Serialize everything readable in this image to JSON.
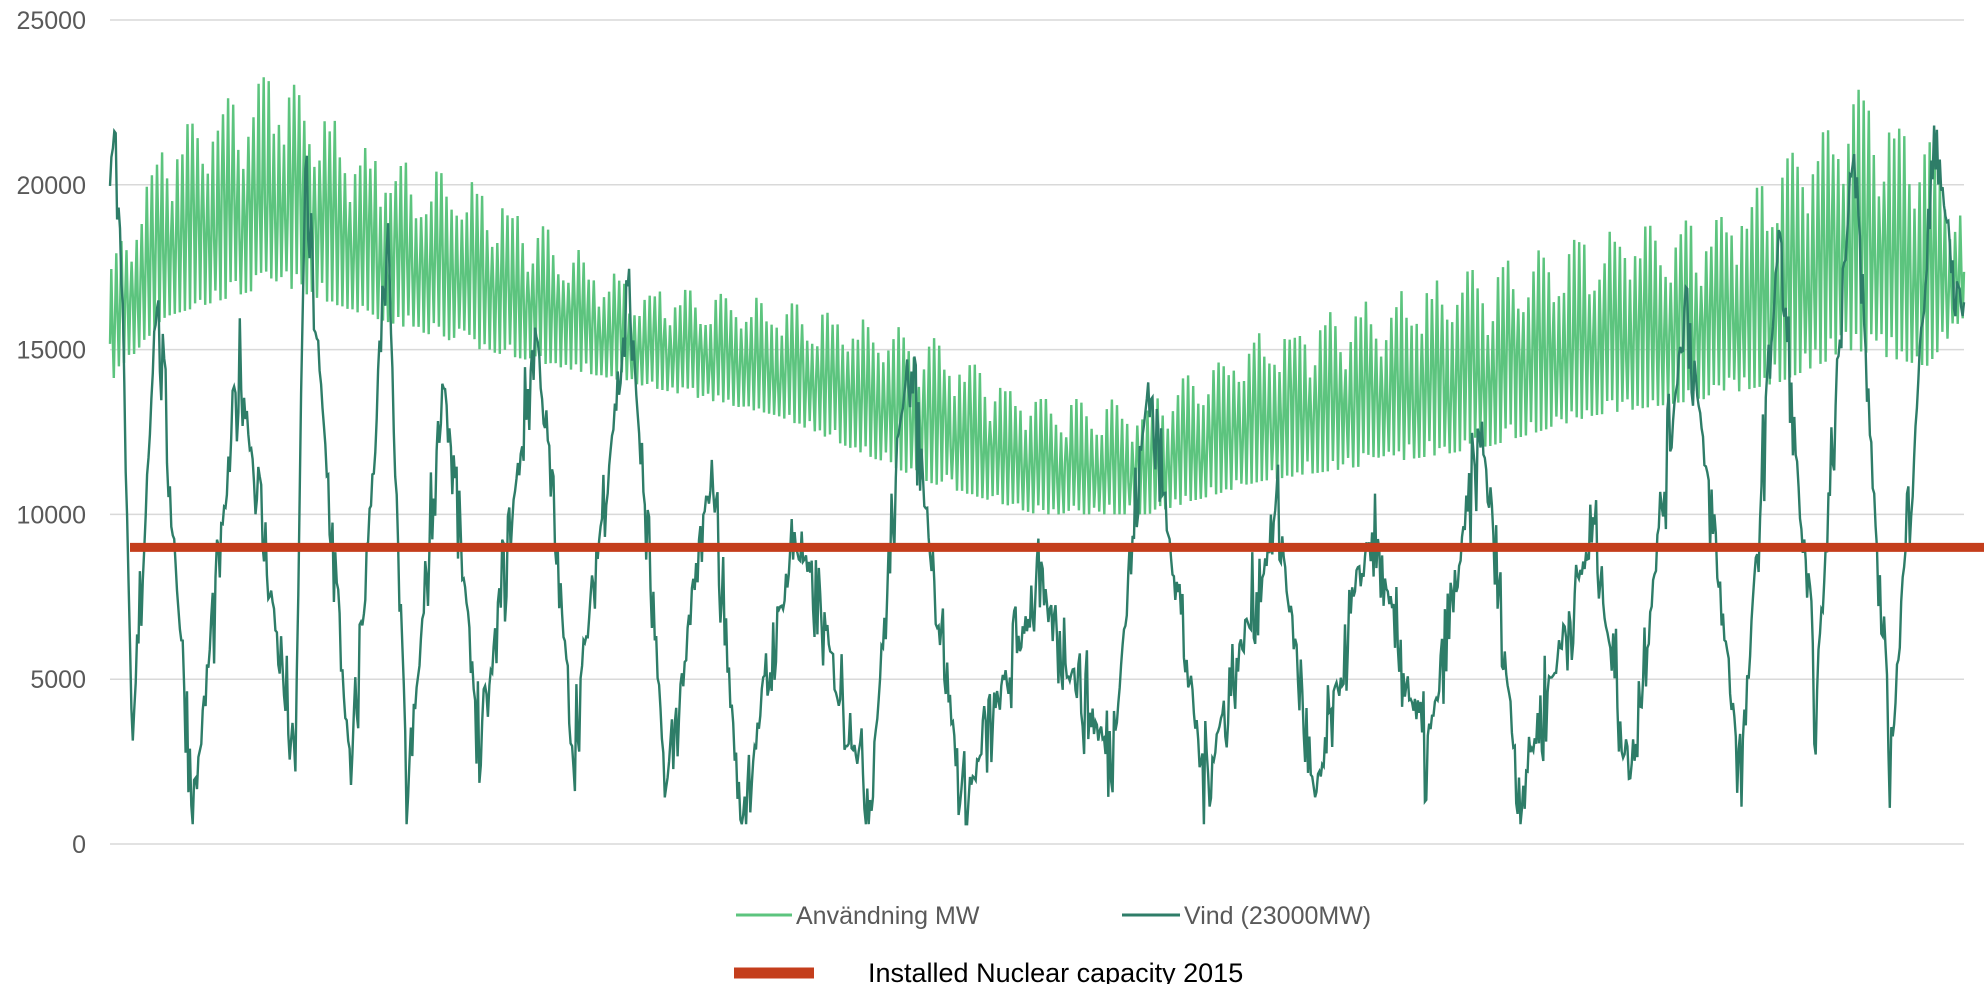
{
  "chart_data": {
    "type": "line",
    "title": "",
    "xlabel": "",
    "ylabel": "",
    "ylim": [
      0,
      25000
    ],
    "yticks": [
      0,
      5000,
      10000,
      15000,
      20000,
      25000
    ],
    "yticks_labels": [
      "0",
      "5000",
      "10000",
      "15000",
      "20000",
      "25000"
    ],
    "grid": "horizontal",
    "x_description": "hourly samples over one year, no x tick labels",
    "legend_position": "bottom",
    "series": [
      {
        "name": "Användning MW",
        "color": "#5cc47e",
        "kind": "oscillating-demand",
        "envelope_x": [
          0,
          0.03,
          0.09,
          0.14,
          0.2,
          0.28,
          0.36,
          0.44,
          0.5,
          0.56,
          0.62,
          0.68,
          0.74,
          0.8,
          0.86,
          0.9,
          0.94,
          0.98,
          1.0
        ],
        "envelope_low": [
          14000,
          16000,
          17000,
          16000,
          15000,
          14000,
          13000,
          11000,
          10000,
          10000,
          11000,
          11500,
          12000,
          13000,
          13500,
          14000,
          15000,
          14500,
          16000
        ],
        "envelope_high": [
          17500,
          21500,
          23500,
          21000,
          20000,
          17000,
          16500,
          15500,
          13500,
          13500,
          15500,
          16500,
          17500,
          18500,
          19000,
          20500,
          23000,
          21500,
          19000
        ]
      },
      {
        "name": "Vind (23000MW)",
        "color": "#2e7d68",
        "kind": "volatile-wind",
        "peaks_x": [
          0.005,
          0.012,
          0.025,
          0.045,
          0.07,
          0.1,
          0.105,
          0.13,
          0.15,
          0.16,
          0.18,
          0.2,
          0.23,
          0.25,
          0.28,
          0.3,
          0.325,
          0.34,
          0.37,
          0.41,
          0.43,
          0.46,
          0.5,
          0.54,
          0.56,
          0.59,
          0.63,
          0.65,
          0.68,
          0.71,
          0.74,
          0.76,
          0.8,
          0.82,
          0.85,
          0.88,
          0.9,
          0.92,
          0.94,
          0.96,
          0.985,
          0.995
        ],
        "peaks_y": [
          20600,
          2500,
          16600,
          1000,
          14500,
          2200,
          20200,
          1800,
          18000,
          1000,
          14200,
          2700,
          15600,
          3000,
          16600,
          1500,
          11400,
          700,
          9500,
          1400,
          15000,
          1000,
          7800,
          2500,
          14000,
          1800,
          10000,
          1200,
          9500,
          2500,
          12500,
          1500,
          9500,
          2000,
          16500,
          2000,
          18500,
          4000,
          21500,
          2200,
          21700,
          16500
        ]
      },
      {
        "name": "Installed Nuclear capacity 2015",
        "color": "#c43e1c",
        "kind": "constant",
        "value": 9000
      }
    ]
  },
  "legend": {
    "item1": "Användning MW",
    "item2": "Vind (23000MW)",
    "item3": "Installed Nuclear capacity 2015"
  }
}
